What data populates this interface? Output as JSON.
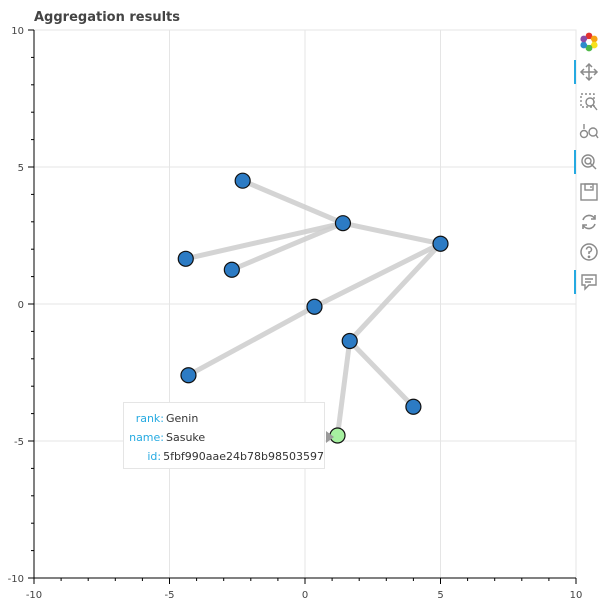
{
  "chart_data": {
    "type": "scatter",
    "title": "Aggregation results",
    "xlim": [
      -10,
      10
    ],
    "ylim": [
      -10,
      10
    ],
    "x_ticks": [
      "-10",
      "-5",
      "0",
      "5",
      "10"
    ],
    "y_ticks": [
      "10",
      "5",
      "0",
      "-5",
      "-10"
    ],
    "grid": true,
    "nodes": [
      {
        "x": -2.3,
        "y": 4.5,
        "fill": "#2c7bc4"
      },
      {
        "x": 1.4,
        "y": 2.95,
        "fill": "#2c7bc4"
      },
      {
        "x": 5.0,
        "y": 2.2,
        "fill": "#2c7bc4"
      },
      {
        "x": -4.4,
        "y": 1.65,
        "fill": "#2c7bc4"
      },
      {
        "x": -2.7,
        "y": 1.25,
        "fill": "#2c7bc4"
      },
      {
        "x": 0.35,
        "y": -0.1,
        "fill": "#2c7bc4"
      },
      {
        "x": 1.65,
        "y": -1.35,
        "fill": "#2c7bc4"
      },
      {
        "x": -4.3,
        "y": -2.6,
        "fill": "#2c7bc4"
      },
      {
        "x": 4.0,
        "y": -3.75,
        "fill": "#2c7bc4"
      },
      {
        "x": 1.2,
        "y": -4.8,
        "fill": "#a6f0a0"
      }
    ],
    "edges": [
      [
        0,
        1
      ],
      [
        1,
        3
      ],
      [
        1,
        4
      ],
      [
        1,
        2
      ],
      [
        2,
        5
      ],
      [
        5,
        7
      ],
      [
        2,
        6
      ],
      [
        6,
        9
      ],
      [
        6,
        8
      ]
    ]
  },
  "tooltip": {
    "rows": [
      {
        "key": "rank:",
        "value": "Genin"
      },
      {
        "key": "name:",
        "value": "Sasuke"
      },
      {
        "key": "id:",
        "value": "5fbf990aae24b78b98503597"
      }
    ]
  },
  "toolbar": {
    "tools": [
      "bokeh-logo-icon",
      "pan-icon",
      "box-zoom-icon",
      "wheel-zoom-icon",
      "tap-icon",
      "save-icon",
      "reset-icon",
      "help-icon",
      "hover-icon"
    ],
    "accent": "#26aae1"
  }
}
